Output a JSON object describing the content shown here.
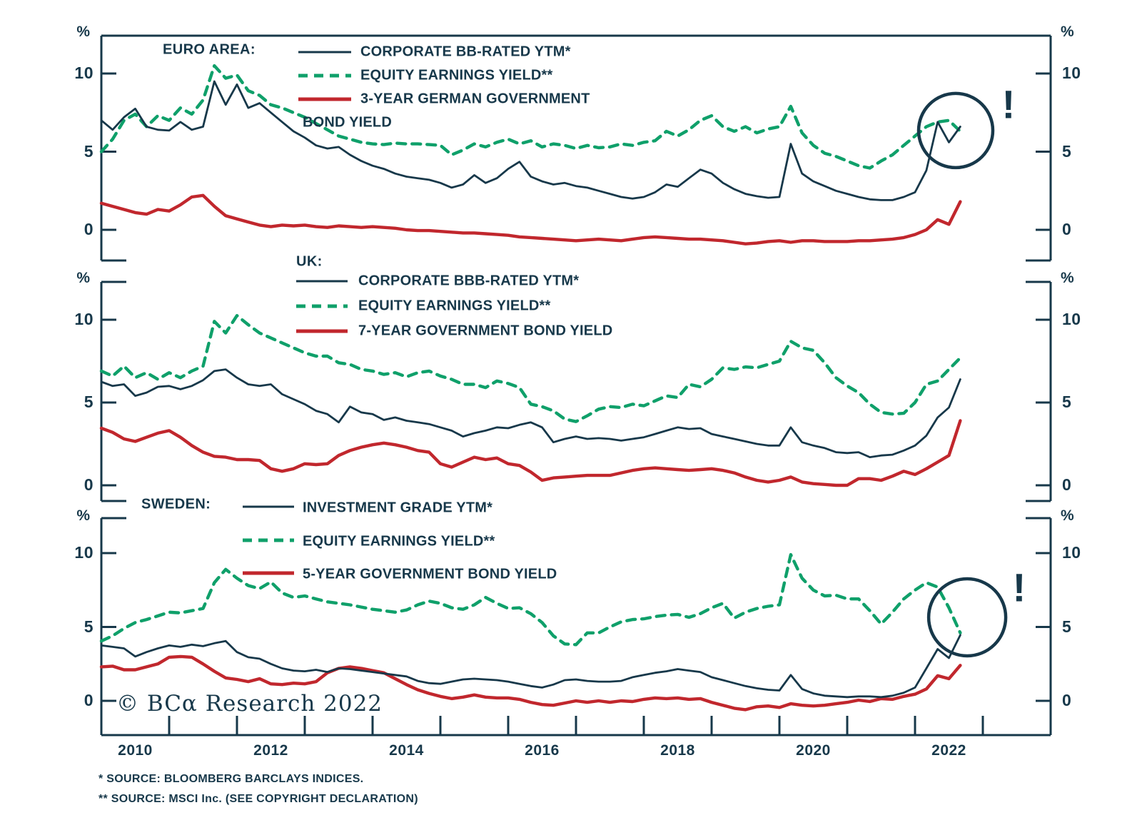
{
  "colors": {
    "navy": "#17384A",
    "green": "#0FA06A",
    "red": "#C1272D",
    "background": "#FFFFFF"
  },
  "y_axis_unit": "%",
  "annotation_mark": "!",
  "watermark": "© BCα Research 2022",
  "footnotes": [
    "*  SOURCE: BLOOMBERG BARCLAYS INDICES.",
    "** SOURCE: MSCI Inc. (SEE COPYRIGHT DECLARATION)"
  ],
  "x_axis": {
    "labels": [
      "2010",
      "2012",
      "2014",
      "2016",
      "2018",
      "2020",
      "2022"
    ],
    "tick_years": [
      2011,
      2012,
      2013,
      2014,
      2015,
      2016,
      2017,
      2018,
      2019,
      2020,
      2021,
      2022,
      2023
    ]
  },
  "chart_data": {
    "type": "line",
    "x_start": 2010.0,
    "x_end": 2022.67,
    "x_step_years": 0.16667,
    "points_per_series": 77,
    "legend_position": "top-left-inside",
    "grid": false,
    "panels": [
      {
        "region": "EURO AREA:",
        "yticks": [
          0,
          5,
          10
        ],
        "ylim": [
          -2.0,
          12.4
        ],
        "alert_circle": {
          "x_year": 2022.6,
          "y_value": 6.35
        },
        "series": [
          {
            "name": "CORPORATE BB-RATED YTM*",
            "style": "solid",
            "color": "navy",
            "values": [
              7.0,
              6.4,
              7.2,
              7.75,
              6.6,
              6.4,
              6.35,
              6.9,
              6.4,
              6.6,
              9.5,
              8.0,
              9.3,
              7.8,
              8.1,
              7.5,
              6.9,
              6.3,
              5.9,
              5.4,
              5.2,
              5.3,
              4.8,
              4.4,
              4.1,
              3.9,
              3.6,
              3.4,
              3.3,
              3.2,
              3.0,
              2.7,
              2.9,
              3.5,
              3.0,
              3.3,
              3.9,
              4.35,
              3.4,
              3.1,
              2.9,
              3.0,
              2.8,
              2.7,
              2.5,
              2.3,
              2.1,
              2.0,
              2.1,
              2.4,
              2.9,
              2.75,
              3.3,
              3.85,
              3.6,
              3.0,
              2.6,
              2.3,
              2.15,
              2.05,
              2.1,
              5.5,
              3.6,
              3.1,
              2.8,
              2.5,
              2.3,
              2.1,
              1.95,
              1.9,
              1.9,
              2.1,
              2.4,
              3.8,
              6.9,
              5.6,
              6.6
            ]
          },
          {
            "name": "EQUITY EARNINGS YIELD**",
            "style": "dashed",
            "color": "green",
            "values": [
              5.0,
              5.8,
              7.0,
              7.4,
              6.6,
              7.3,
              7.0,
              7.8,
              7.4,
              8.3,
              10.5,
              9.7,
              9.9,
              8.9,
              8.6,
              8.0,
              7.8,
              7.5,
              7.2,
              6.8,
              6.4,
              6.0,
              5.8,
              5.6,
              5.5,
              5.45,
              5.55,
              5.5,
              5.5,
              5.45,
              5.4,
              4.8,
              5.1,
              5.5,
              5.3,
              5.6,
              5.8,
              5.5,
              5.7,
              5.3,
              5.5,
              5.4,
              5.2,
              5.4,
              5.25,
              5.3,
              5.5,
              5.4,
              5.6,
              5.7,
              6.3,
              6.0,
              6.4,
              7.0,
              7.3,
              6.6,
              6.3,
              6.6,
              6.2,
              6.45,
              6.6,
              7.9,
              6.2,
              5.4,
              4.9,
              4.7,
              4.4,
              4.1,
              3.95,
              4.4,
              4.8,
              5.4,
              6.0,
              6.6,
              6.9,
              7.0,
              6.3
            ]
          },
          {
            "name": "3-YEAR GERMAN GOVERNMENT BOND YIELD",
            "style": "solid",
            "color": "red",
            "label_lines": [
              "3-YEAR GERMAN GOVERNMENT",
              "BOND YIELD"
            ],
            "values": [
              1.7,
              1.5,
              1.3,
              1.1,
              1.0,
              1.3,
              1.2,
              1.6,
              2.1,
              2.2,
              1.5,
              0.9,
              0.7,
              0.5,
              0.3,
              0.2,
              0.3,
              0.25,
              0.3,
              0.2,
              0.15,
              0.25,
              0.2,
              0.15,
              0.2,
              0.15,
              0.1,
              0.0,
              -0.05,
              -0.05,
              -0.1,
              -0.15,
              -0.2,
              -0.2,
              -0.25,
              -0.3,
              -0.35,
              -0.45,
              -0.5,
              -0.55,
              -0.6,
              -0.65,
              -0.7,
              -0.65,
              -0.6,
              -0.65,
              -0.7,
              -0.6,
              -0.5,
              -0.45,
              -0.5,
              -0.55,
              -0.6,
              -0.6,
              -0.65,
              -0.7,
              -0.8,
              -0.9,
              -0.85,
              -0.75,
              -0.7,
              -0.8,
              -0.7,
              -0.7,
              -0.75,
              -0.75,
              -0.75,
              -0.7,
              -0.7,
              -0.65,
              -0.6,
              -0.5,
              -0.3,
              0.0,
              0.65,
              0.35,
              1.8
            ]
          }
        ]
      },
      {
        "region": "UK:",
        "yticks": [
          0,
          5,
          10
        ],
        "ylim": [
          -0.95,
          12.3
        ],
        "alert_circle": null,
        "series": [
          {
            "name": "CORPORATE BBB-RATED YTM*",
            "style": "solid",
            "color": "navy",
            "values": [
              6.25,
              6.0,
              6.1,
              5.4,
              5.6,
              5.95,
              6.0,
              5.8,
              6.0,
              6.35,
              6.9,
              7.0,
              6.5,
              6.1,
              6.0,
              6.1,
              5.5,
              5.2,
              4.9,
              4.5,
              4.3,
              3.8,
              4.75,
              4.4,
              4.3,
              3.95,
              4.1,
              3.9,
              3.8,
              3.7,
              3.5,
              3.3,
              2.95,
              3.15,
              3.3,
              3.5,
              3.45,
              3.65,
              3.8,
              3.5,
              2.6,
              2.8,
              2.95,
              2.8,
              2.85,
              2.8,
              2.7,
              2.8,
              2.9,
              3.1,
              3.3,
              3.5,
              3.4,
              3.45,
              3.1,
              2.95,
              2.8,
              2.65,
              2.5,
              2.4,
              2.4,
              3.5,
              2.6,
              2.4,
              2.25,
              2.0,
              1.95,
              2.0,
              1.7,
              1.8,
              1.85,
              2.1,
              2.4,
              3.0,
              4.1,
              4.7,
              6.4
            ]
          },
          {
            "name": "EQUITY EARNINGS YIELD**",
            "style": "dashed",
            "color": "green",
            "values": [
              6.9,
              6.6,
              7.2,
              6.5,
              6.8,
              6.4,
              6.8,
              6.5,
              6.9,
              7.2,
              9.9,
              9.2,
              10.25,
              9.7,
              9.2,
              8.9,
              8.6,
              8.3,
              8.0,
              7.8,
              7.8,
              7.4,
              7.3,
              7.0,
              6.9,
              6.7,
              6.8,
              6.55,
              6.8,
              6.9,
              6.6,
              6.4,
              6.1,
              6.1,
              5.9,
              6.3,
              6.15,
              5.9,
              4.9,
              4.75,
              4.5,
              4.0,
              3.85,
              4.2,
              4.6,
              4.75,
              4.7,
              4.9,
              4.8,
              5.1,
              5.4,
              5.3,
              6.1,
              5.95,
              6.4,
              7.1,
              7.0,
              7.15,
              7.1,
              7.3,
              7.5,
              8.7,
              8.3,
              8.15,
              7.4,
              6.5,
              6.0,
              5.6,
              4.9,
              4.4,
              4.3,
              4.35,
              5.0,
              6.1,
              6.3,
              7.0,
              7.7
            ]
          },
          {
            "name": "7-YEAR GOVERNMENT BOND YIELD",
            "style": "solid",
            "color": "red",
            "values": [
              3.45,
              3.2,
              2.8,
              2.65,
              2.9,
              3.15,
              3.3,
              2.9,
              2.4,
              2.0,
              1.75,
              1.7,
              1.55,
              1.55,
              1.5,
              1.0,
              0.85,
              1.0,
              1.3,
              1.25,
              1.3,
              1.8,
              2.1,
              2.3,
              2.45,
              2.55,
              2.45,
              2.3,
              2.1,
              2.0,
              1.3,
              1.1,
              1.4,
              1.7,
              1.55,
              1.65,
              1.3,
              1.2,
              0.8,
              0.3,
              0.45,
              0.5,
              0.55,
              0.6,
              0.6,
              0.6,
              0.75,
              0.9,
              1.0,
              1.05,
              1.0,
              0.95,
              0.9,
              0.95,
              1.0,
              0.9,
              0.75,
              0.5,
              0.3,
              0.2,
              0.3,
              0.5,
              0.2,
              0.1,
              0.05,
              0.0,
              0.0,
              0.4,
              0.4,
              0.3,
              0.55,
              0.85,
              0.65,
              1.0,
              1.4,
              1.8,
              3.9
            ]
          }
        ]
      },
      {
        "region": "SWEDEN:",
        "yticks": [
          0,
          5,
          10
        ],
        "ylim": [
          -2.3,
          12.4
        ],
        "alert_circle": {
          "x_year": 2022.77,
          "y_value": 5.65
        },
        "series": [
          {
            "name": "INVESTMENT GRADE YTM*",
            "style": "solid",
            "color": "navy",
            "values": [
              3.75,
              3.65,
              3.55,
              3.0,
              3.3,
              3.55,
              3.75,
              3.65,
              3.8,
              3.7,
              3.9,
              4.05,
              3.3,
              2.95,
              2.85,
              2.5,
              2.2,
              2.05,
              2.0,
              2.1,
              1.95,
              2.2,
              2.15,
              2.05,
              1.95,
              1.85,
              1.75,
              1.65,
              1.35,
              1.2,
              1.15,
              1.3,
              1.45,
              1.5,
              1.45,
              1.4,
              1.3,
              1.15,
              1.0,
              0.9,
              1.1,
              1.4,
              1.45,
              1.35,
              1.3,
              1.3,
              1.35,
              1.6,
              1.75,
              1.9,
              2.0,
              2.15,
              2.05,
              1.95,
              1.6,
              1.4,
              1.2,
              1.0,
              0.85,
              0.75,
              0.7,
              1.75,
              0.8,
              0.5,
              0.35,
              0.3,
              0.25,
              0.3,
              0.3,
              0.25,
              0.35,
              0.55,
              0.9,
              2.2,
              3.5,
              2.9,
              4.45
            ]
          },
          {
            "name": "EQUITY EARNINGS YIELD**",
            "style": "dashed",
            "color": "green",
            "values": [
              4.05,
              4.4,
              4.9,
              5.3,
              5.5,
              5.75,
              6.0,
              5.95,
              6.1,
              6.25,
              8.0,
              8.9,
              8.3,
              7.8,
              7.6,
              8.05,
              7.3,
              7.0,
              7.1,
              6.9,
              6.7,
              6.6,
              6.5,
              6.35,
              6.2,
              6.1,
              6.0,
              6.15,
              6.5,
              6.75,
              6.6,
              6.3,
              6.2,
              6.5,
              7.0,
              6.6,
              6.25,
              6.3,
              5.9,
              5.3,
              4.4,
              3.85,
              3.8,
              4.6,
              4.6,
              5.0,
              5.35,
              5.5,
              5.55,
              5.7,
              5.8,
              5.85,
              5.65,
              5.9,
              6.3,
              6.6,
              5.6,
              6.0,
              6.25,
              6.4,
              6.5,
              9.9,
              8.3,
              7.5,
              7.1,
              7.15,
              6.9,
              6.9,
              6.1,
              5.2,
              6.0,
              6.9,
              7.5,
              8.0,
              7.7,
              6.3,
              4.6
            ]
          },
          {
            "name": "5-YEAR GOVERNMENT BOND YIELD",
            "style": "solid",
            "color": "red",
            "values": [
              2.3,
              2.35,
              2.1,
              2.1,
              2.3,
              2.5,
              2.95,
              3.0,
              2.95,
              2.5,
              2.0,
              1.55,
              1.45,
              1.3,
              1.5,
              1.15,
              1.1,
              1.2,
              1.15,
              1.3,
              1.9,
              2.2,
              2.3,
              2.2,
              2.05,
              1.9,
              1.5,
              1.1,
              0.75,
              0.5,
              0.3,
              0.15,
              0.25,
              0.4,
              0.25,
              0.2,
              0.2,
              0.1,
              -0.1,
              -0.25,
              -0.3,
              -0.15,
              0.0,
              -0.1,
              0.0,
              -0.1,
              0.0,
              -0.05,
              0.1,
              0.2,
              0.15,
              0.2,
              0.1,
              0.15,
              -0.1,
              -0.3,
              -0.5,
              -0.6,
              -0.4,
              -0.35,
              -0.45,
              -0.2,
              -0.3,
              -0.35,
              -0.3,
              -0.2,
              -0.1,
              0.05,
              -0.05,
              0.15,
              0.1,
              0.3,
              0.45,
              0.8,
              1.7,
              1.5,
              2.4
            ]
          }
        ]
      }
    ]
  }
}
